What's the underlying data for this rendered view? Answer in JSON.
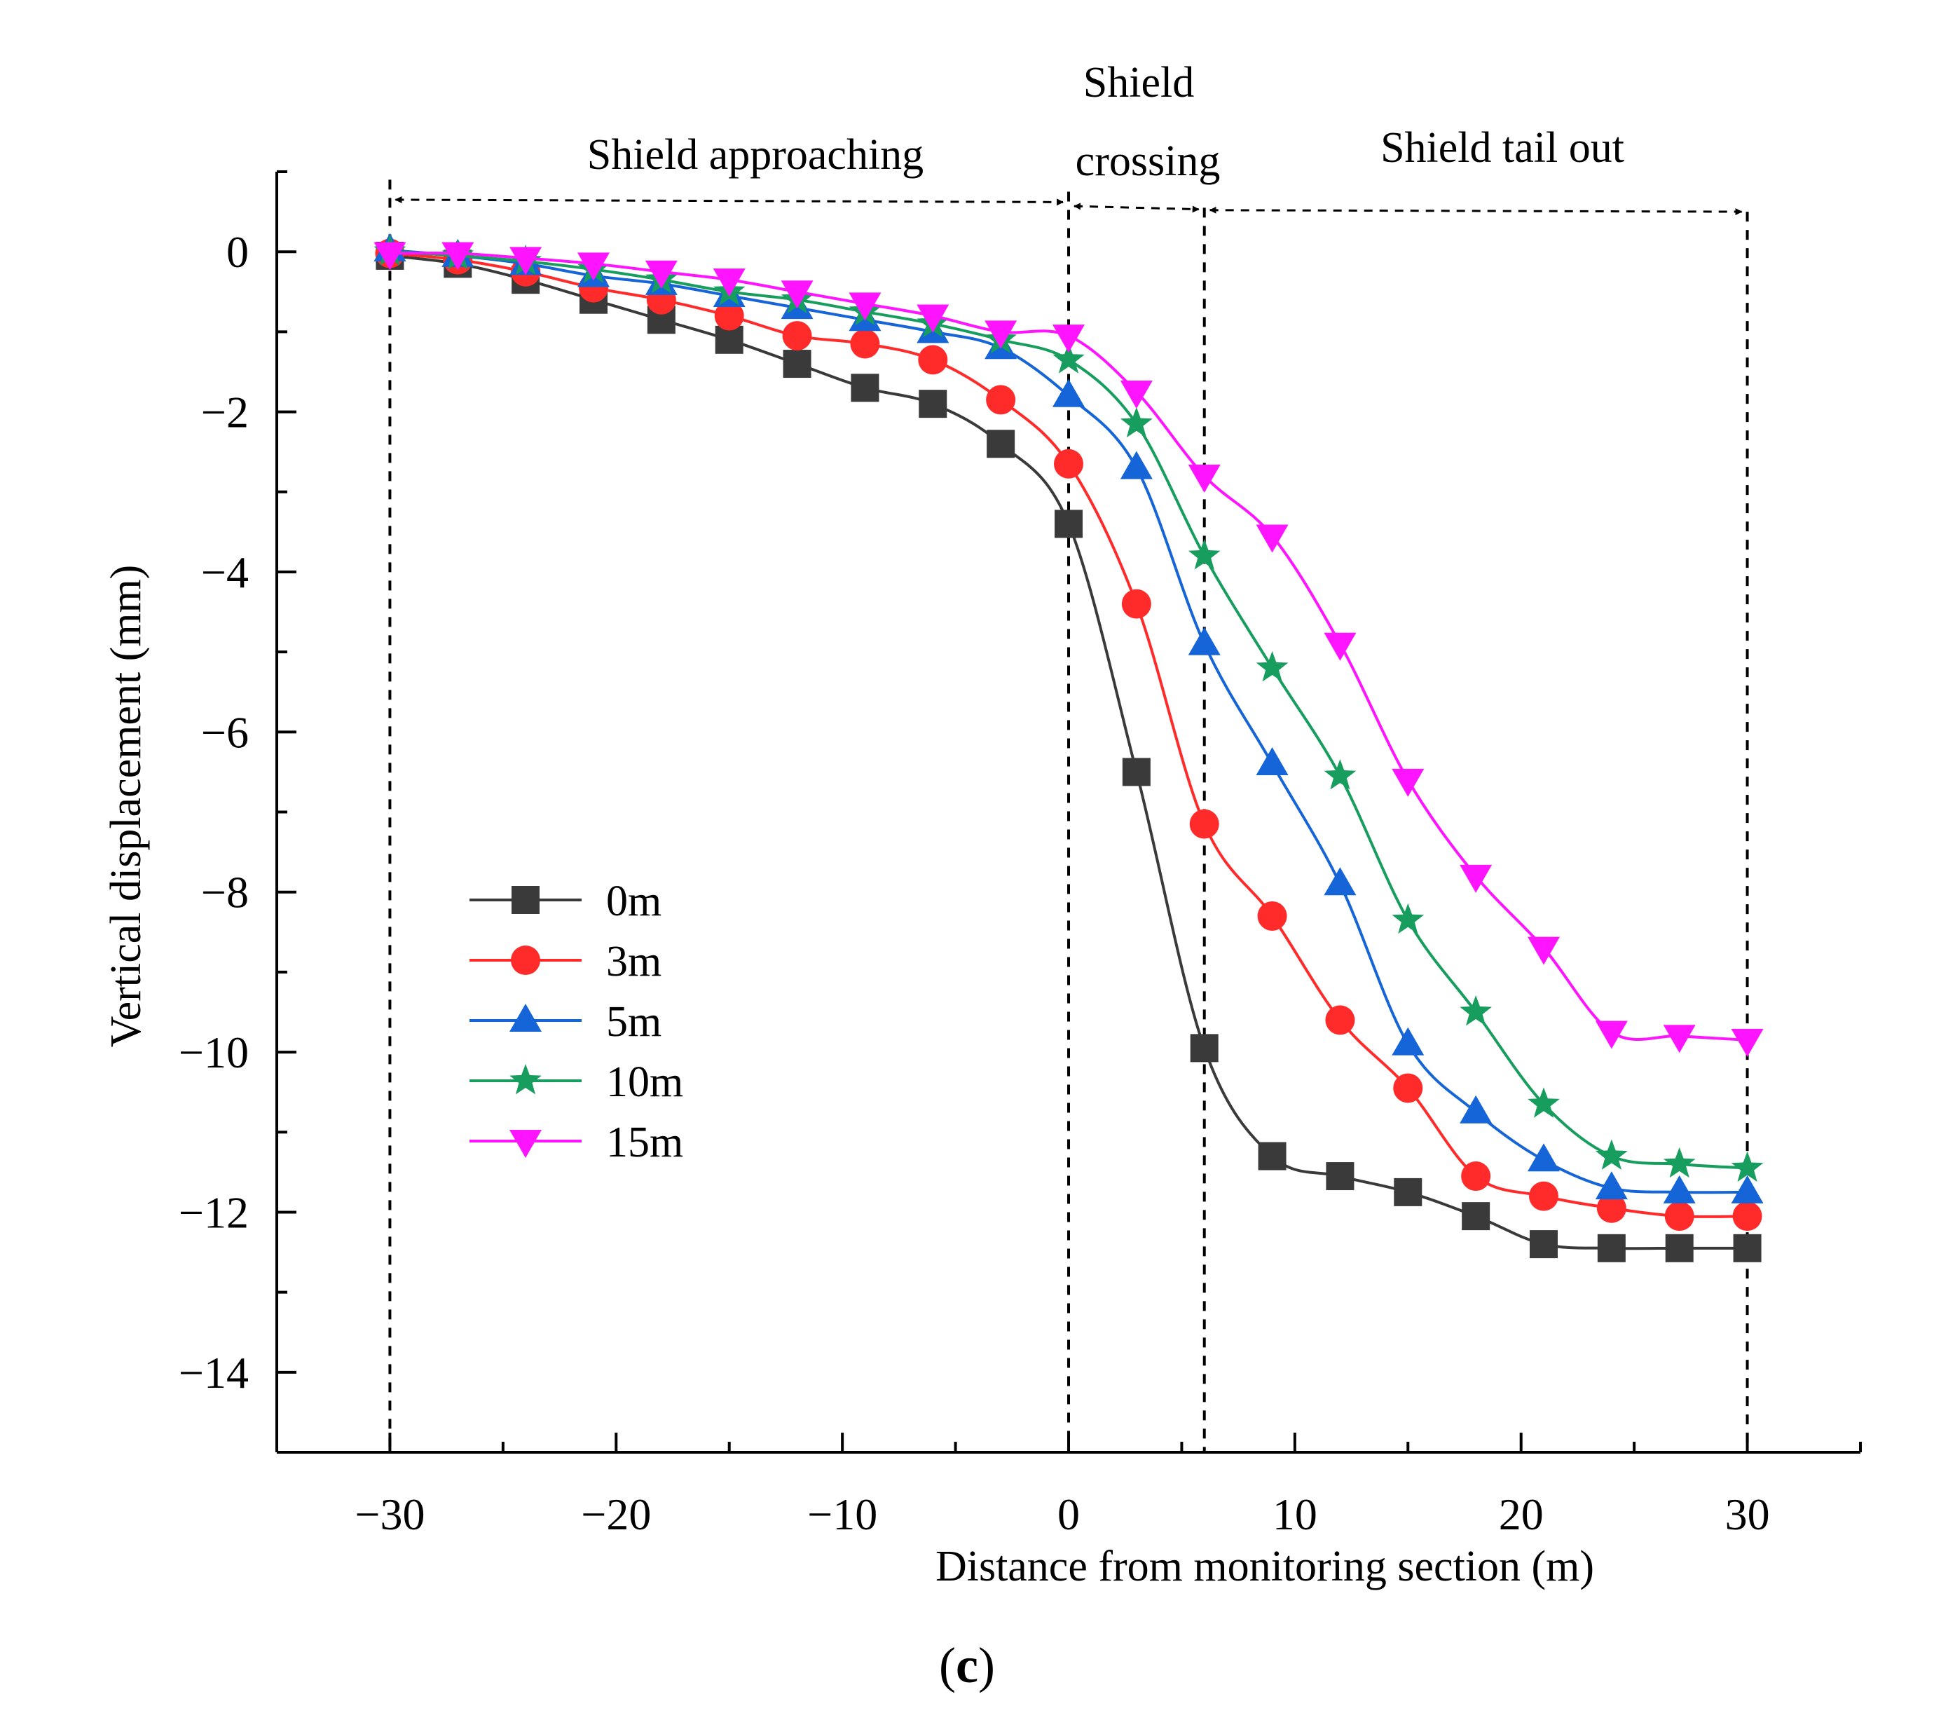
{
  "chart_data": {
    "type": "line",
    "title": "",
    "xlabel": "Distance from monitoring section (m)",
    "ylabel": "Vertical displacement (mm)",
    "xlim": [
      -35,
      35
    ],
    "ylim": [
      -15,
      1
    ],
    "xticks": [
      -30,
      -20,
      -10,
      0,
      10,
      20,
      30
    ],
    "xtick_labels": [
      "−30",
      "−20",
      "−10",
      "0",
      "10",
      "20",
      "30"
    ],
    "yticks": [
      0,
      -2,
      -4,
      -6,
      -8,
      -10,
      -12,
      -14
    ],
    "ytick_labels": [
      "0",
      "−2",
      "−4",
      "−6",
      "−8",
      "−10",
      "−12",
      "−14"
    ],
    "grid": false,
    "legend_position": "lower-left",
    "x": [
      -30,
      -27,
      -24,
      -21,
      -18,
      -15,
      -12,
      -9,
      -6,
      -3,
      0,
      3,
      6,
      9,
      12,
      15,
      18,
      21,
      24,
      27,
      30
    ],
    "series": [
      {
        "name": "0m",
        "color": "#3a3a3a",
        "marker": "square",
        "values": [
          -0.05,
          -0.15,
          -0.35,
          -0.6,
          -0.85,
          -1.1,
          -1.4,
          -1.7,
          -1.9,
          -2.4,
          -3.4,
          -6.5,
          -9.95,
          -11.3,
          -11.55,
          -11.75,
          -12.05,
          -12.4,
          -12.45,
          -12.45,
          -12.45
        ]
      },
      {
        "name": "3m",
        "color": "#ff2a2a",
        "marker": "circle",
        "values": [
          -0.02,
          -0.1,
          -0.25,
          -0.45,
          -0.6,
          -0.8,
          -1.05,
          -1.15,
          -1.35,
          -1.85,
          -2.65,
          -4.4,
          -7.15,
          -8.3,
          -9.6,
          -10.45,
          -11.55,
          -11.8,
          -11.95,
          -12.05,
          -12.05
        ]
      },
      {
        "name": "5m",
        "color": "#1565d8",
        "marker": "triangle-up",
        "values": [
          0.02,
          -0.05,
          -0.15,
          -0.3,
          -0.4,
          -0.55,
          -0.7,
          -0.85,
          -1.0,
          -1.2,
          -1.8,
          -2.7,
          -4.9,
          -6.4,
          -7.9,
          -9.9,
          -10.75,
          -11.35,
          -11.7,
          -11.75,
          -11.75
        ]
      },
      {
        "name": "10m",
        "color": "#179e5e",
        "marker": "star",
        "values": [
          0.0,
          -0.05,
          -0.12,
          -0.22,
          -0.35,
          -0.5,
          -0.6,
          -0.75,
          -0.9,
          -1.1,
          -1.35,
          -2.15,
          -3.8,
          -5.2,
          -6.55,
          -8.35,
          -9.5,
          -10.65,
          -11.3,
          -11.4,
          -11.45
        ]
      },
      {
        "name": "15m",
        "color": "#ff14ff",
        "marker": "triangle-down",
        "values": [
          -0.02,
          -0.02,
          -0.08,
          -0.15,
          -0.25,
          -0.35,
          -0.5,
          -0.65,
          -0.8,
          -1.0,
          -1.05,
          -1.75,
          -2.8,
          -3.55,
          -4.9,
          -6.6,
          -7.8,
          -8.7,
          -9.75,
          -9.8,
          -9.85
        ]
      }
    ],
    "annotations": {
      "approaching": "Shield approaching",
      "crossing_line1": "Shield",
      "crossing_line2": "crossing",
      "tail_out": "Shield tail out"
    },
    "stage_boundaries_x": [
      -30,
      0,
      6,
      30
    ]
  },
  "panel_label": {
    "open": "(",
    "letter": "c",
    "close": ")"
  }
}
